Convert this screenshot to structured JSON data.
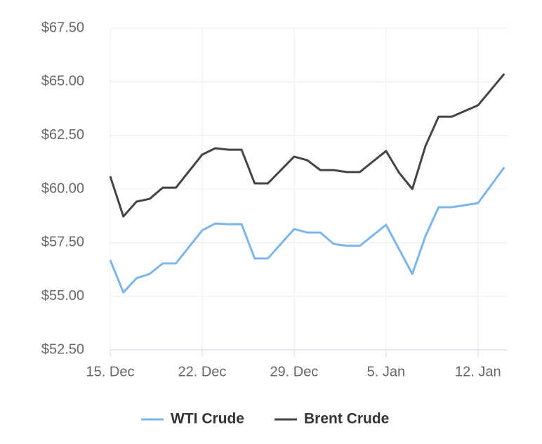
{
  "chart_data": {
    "type": "line",
    "x": [
      0,
      1,
      2,
      3,
      4,
      5,
      7,
      8,
      9,
      10,
      11,
      12,
      14,
      15,
      16,
      17,
      18,
      19,
      21,
      22,
      23,
      24,
      25,
      26,
      28,
      30
    ],
    "xlim": [
      0,
      30.2
    ],
    "xticks": [
      {
        "value": 0,
        "label": "15. Dec"
      },
      {
        "value": 7,
        "label": "22. Dec"
      },
      {
        "value": 14,
        "label": "29. Dec"
      },
      {
        "value": 21,
        "label": "5. Jan"
      },
      {
        "value": 28,
        "label": "12. Jan"
      }
    ],
    "ylim": [
      52.5,
      67.5
    ],
    "yticks": [
      {
        "value": 52.5,
        "label": "$52.50"
      },
      {
        "value": 55,
        "label": "$55.00"
      },
      {
        "value": 57.5,
        "label": "$57.50"
      },
      {
        "value": 60,
        "label": "$60.00"
      },
      {
        "value": 62.5,
        "label": "$62.50"
      },
      {
        "value": 65,
        "label": "$65.00"
      },
      {
        "value": 67.5,
        "label": "$67.50"
      }
    ],
    "grid": true,
    "legend": "bottom",
    "series": [
      {
        "name": "WTI Crude",
        "color": "#7cb5ec",
        "values": [
          56.69,
          55.18,
          55.84,
          56.04,
          56.53,
          56.53,
          58.07,
          58.39,
          58.36,
          58.36,
          56.76,
          56.76,
          58.13,
          57.97,
          57.97,
          57.44,
          57.35,
          57.35,
          58.33,
          57.18,
          56.04,
          57.8,
          59.15,
          59.15,
          59.34,
          61.01
        ]
      },
      {
        "name": "Brent Crude",
        "color": "#434348",
        "values": [
          60.59,
          58.72,
          59.41,
          59.54,
          60.06,
          60.06,
          61.6,
          61.9,
          61.83,
          61.83,
          60.26,
          60.26,
          61.51,
          61.34,
          60.88,
          60.88,
          60.79,
          60.79,
          61.77,
          60.75,
          60.0,
          62.0,
          63.37,
          63.37,
          63.9,
          65.37
        ]
      }
    ]
  }
}
